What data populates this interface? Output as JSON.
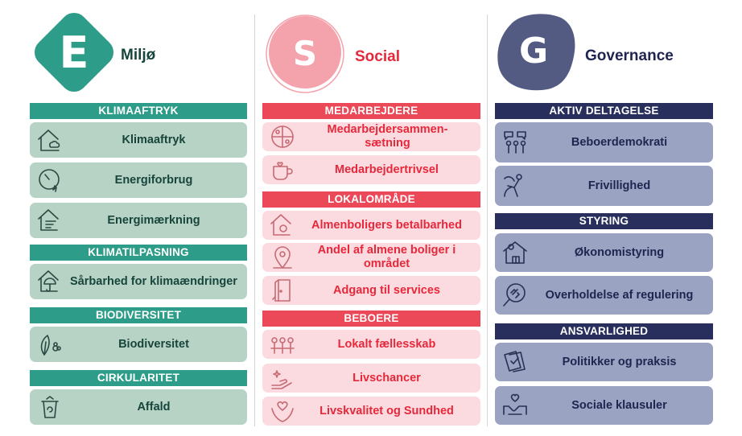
{
  "columns": {
    "e": {
      "letter": "E",
      "title": "Miljø",
      "color": "#2d9c88",
      "sections": [
        {
          "header": "KLIMAAFTRYK",
          "cards": [
            "Klimaaftryk",
            "Energiforbrug",
            "Energimærkning"
          ]
        },
        {
          "header": "KLIMATILPASNING",
          "cards": [
            "Sårbarhed for klimaændringer"
          ]
        },
        {
          "header": "BIODIVERSITET",
          "cards": [
            "Biodiversitet"
          ]
        },
        {
          "header": "CIRKULARITET",
          "cards": [
            "Affald"
          ]
        }
      ]
    },
    "s": {
      "letter": "S",
      "title": "Social",
      "color": "#eb4858",
      "sections": [
        {
          "header": "MEDARBEJDERE",
          "cards": [
            "Medarbejdersammen-sætning",
            "Medarbejdertrivsel"
          ]
        },
        {
          "header": "LOKALOMRÅDE",
          "cards": [
            "Almenboligers betalbarhed",
            "Andel af almene boliger i området",
            "Adgang til services"
          ]
        },
        {
          "header": "BEBOERE",
          "cards": [
            "Lokalt fællesskab",
            "Livschancer",
            "Livskvalitet og Sundhed"
          ]
        }
      ]
    },
    "g": {
      "letter": "G",
      "title": "Governance",
      "color": "#282f5c",
      "sections": [
        {
          "header": "AKTIV DELTAGELSE",
          "cards": [
            "Beboerdemokrati",
            "Frivillighed"
          ]
        },
        {
          "header": "STYRING",
          "cards": [
            "Økonomistyring",
            "Overholdelse af regulering"
          ]
        },
        {
          "header": "ANSVARLIGHED",
          "cards": [
            "Politikker og praksis",
            "Sociale klausuler"
          ]
        }
      ]
    }
  }
}
